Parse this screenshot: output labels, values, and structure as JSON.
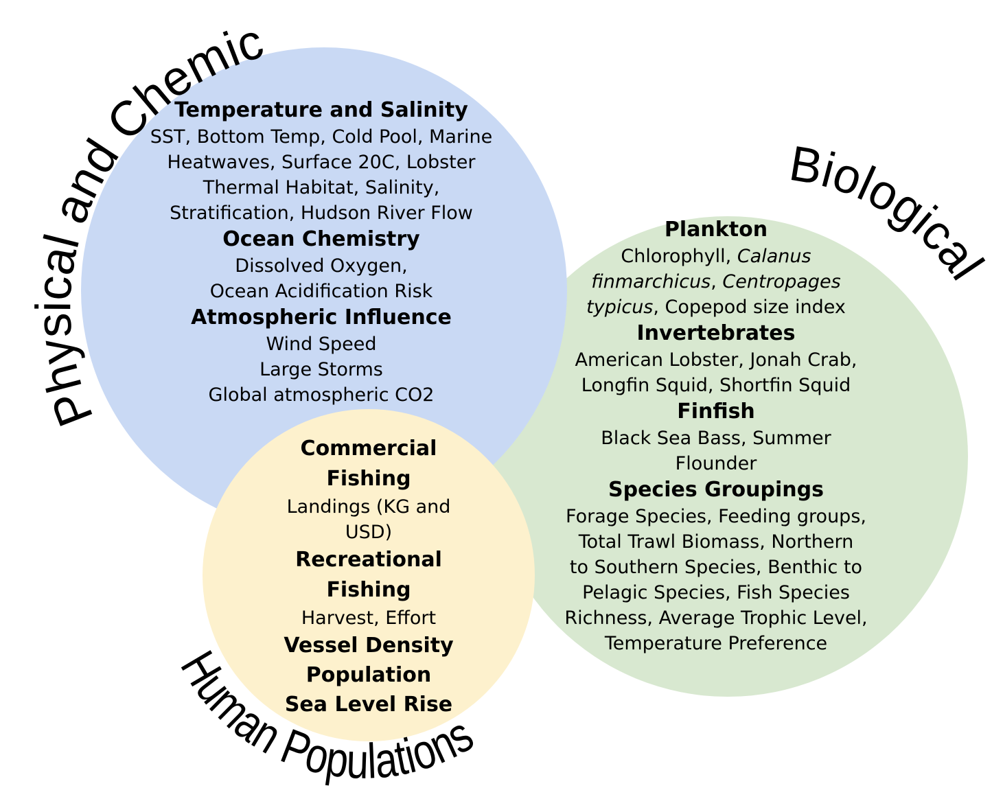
{
  "colors": {
    "physical": "#c9d9f4",
    "biological": "#d8e8d0",
    "human": "#fdf1cd"
  },
  "labels": {
    "physical": "Physical and Chemical",
    "biological": "Biological",
    "human": "Human Populations"
  },
  "physical": {
    "temp_heading": "Temperature and Salinity",
    "temp_lines": [
      "SST, Bottom Temp, Cold Pool, Marine",
      "Heatwaves, Surface 20C, Lobster",
      "Thermal Habitat, Salinity,",
      "Stratification, Hudson River Flow"
    ],
    "chem_heading": "Ocean Chemistry",
    "chem_lines": [
      "Dissolved Oxygen,",
      "Ocean Acidification Risk"
    ],
    "atmo_heading": "Atmospheric Influence",
    "atmo_lines": [
      "Wind Speed",
      "Large Storms",
      "Global atmospheric CO2"
    ]
  },
  "biological": {
    "plankton_heading": "Plankton",
    "plankton_l1_a": "Chlorophyll, ",
    "plankton_l1_b": "Calanus",
    "plankton_l2_a": "finmarchicus",
    "plankton_l2_b": ", ",
    "plankton_l2_c": "Centropages",
    "plankton_l3_a": "typicus",
    "plankton_l3_b": ", Copepod size index",
    "invert_heading": "Invertebrates",
    "invert_lines": [
      "American Lobster, Jonah Crab,",
      "Longfin Squid, Shortfin Squid"
    ],
    "finfish_heading": "Finfish",
    "finfish_lines": [
      "Black Sea Bass, Summer",
      "Flounder"
    ],
    "groups_heading": "Species Groupings",
    "groups_lines": [
      "Forage Species, Feeding groups,",
      "Total Trawl Biomass, Northern",
      "to Southern Species, Benthic to",
      "Pelagic Species, Fish Species",
      "Richness, Average Trophic Level,",
      "Temperature Preference"
    ]
  },
  "human": {
    "commercial_heading": [
      "Commercial",
      "Fishing"
    ],
    "commercial_lines": [
      "Landings (KG and",
      "USD)"
    ],
    "recreational_heading": [
      "Recreational",
      "Fishing"
    ],
    "recreational_lines": [
      "Harvest, Effort"
    ],
    "extra_headings": [
      "Vessel Density",
      "Population",
      "Sea Level Rise"
    ]
  }
}
